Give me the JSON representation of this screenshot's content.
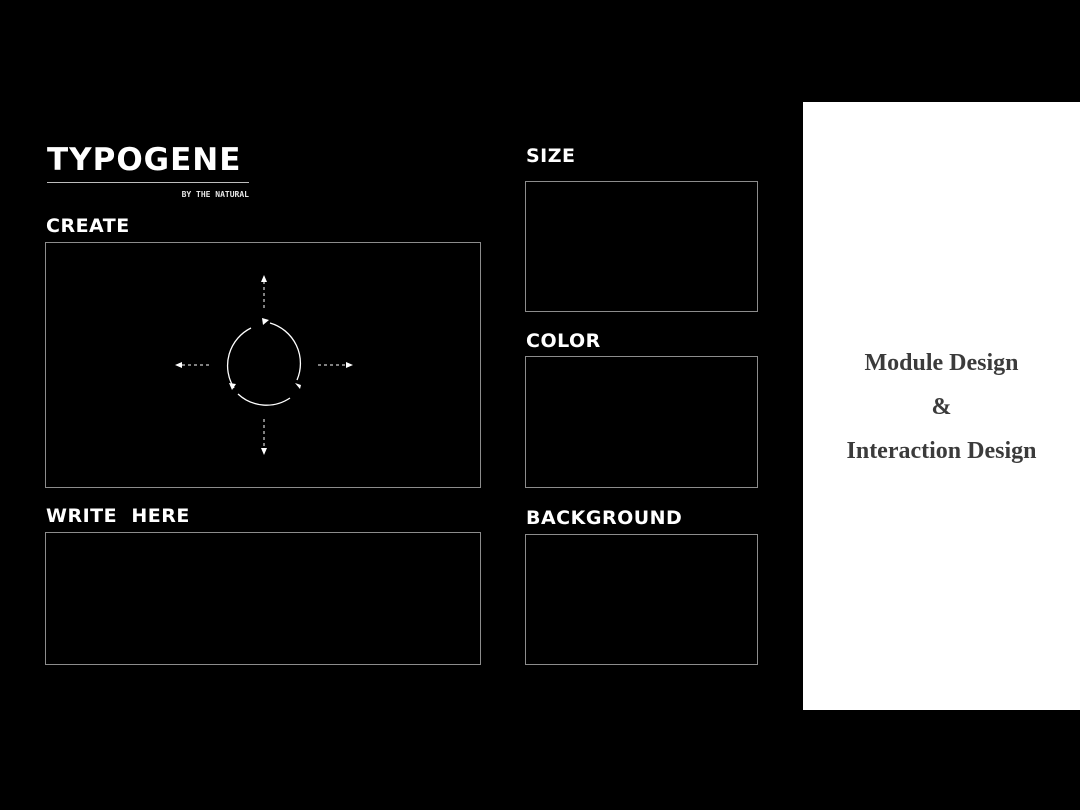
{
  "logo": {
    "title": "TYPOGENE",
    "subtitle": "BY THE NATURAL"
  },
  "create": {
    "label": "CREATE",
    "control_icon": "rotate-and-move-arrows-icon"
  },
  "write": {
    "label": "WRITE  HERE",
    "value": ""
  },
  "size": {
    "label": "SIZE"
  },
  "color": {
    "label": "COLOR"
  },
  "background": {
    "label": "BACKGROUND"
  },
  "promo": {
    "line1": "Module Design",
    "line2": "&",
    "line3": "Interaction Design"
  },
  "colors": {
    "page_bg": "#000000",
    "box_border": "#8c8c8c",
    "promo_bg": "#ffffff",
    "promo_text": "#3b3b3b"
  }
}
